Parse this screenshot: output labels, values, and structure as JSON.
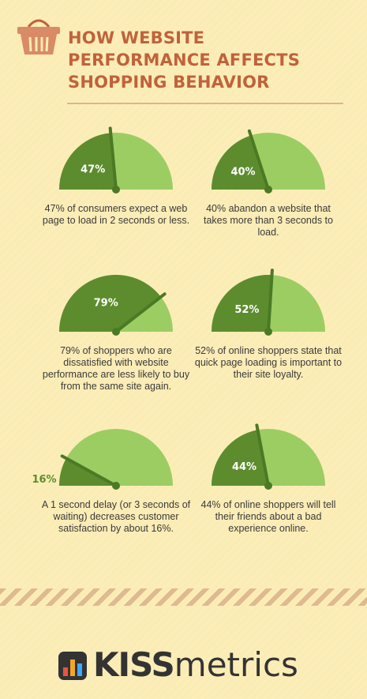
{
  "header": {
    "title_lines": [
      "HOW WEBSITE",
      "PERFORMANCE AFFECTS",
      "SHOPPING BEHAVIOR"
    ]
  },
  "colors": {
    "background": "#fbecb4",
    "title": "#c0623b",
    "gauge_dark": "#5d8c2e",
    "gauge_light": "#9ccd63",
    "rule": "#dcb48c"
  },
  "stats": [
    {
      "percent": 47,
      "label": "47%",
      "text": "47% of consumers expect a web page to load in 2 seconds or less."
    },
    {
      "percent": 40,
      "label": "40%",
      "text": "40% abandon a website that takes more than 3 seconds to load."
    },
    {
      "percent": 79,
      "label": "79%",
      "text": "79% of shoppers who are dissatisfied with website performance are less likely to buy from the same site again."
    },
    {
      "percent": 52,
      "label": "52%",
      "text": "52% of online shoppers state that quick page loading is important to their site loyalty."
    },
    {
      "percent": 16,
      "label": "16%",
      "text": "A 1 second delay (or 3 seconds of waiting) decreases customer satisfaction by about 16%."
    },
    {
      "percent": 44,
      "label": "44%",
      "text": "44% of online shoppers will tell their friends about a bad experience online."
    }
  ],
  "logo": {
    "bold": "KISS",
    "regular": "metrics"
  }
}
